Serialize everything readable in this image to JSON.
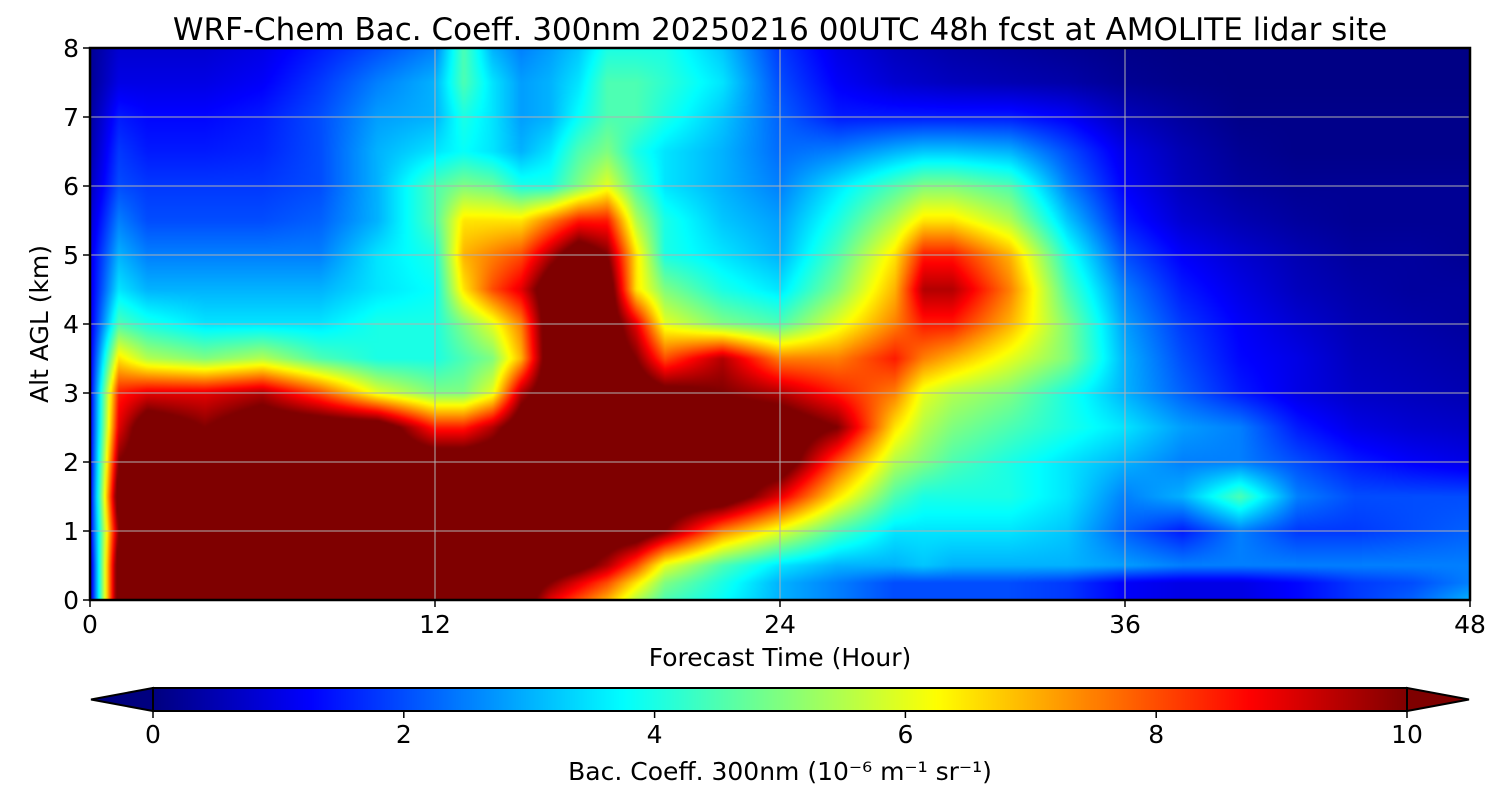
{
  "chart_data": {
    "type": "heatmap",
    "title": "WRF-Chem Bac. Coeff. 300nm  20250216 00UTC 48h fcst at AMOLITE lidar site",
    "xlabel": "Forecast Time (Hour)",
    "ylabel": "Alt AGL (km)",
    "xlim": [
      0,
      48
    ],
    "ylim": [
      0,
      8
    ],
    "xticks": [
      "0",
      "12",
      "24",
      "36",
      "48"
    ],
    "yticks": [
      "0",
      "1",
      "2",
      "3",
      "4",
      "5",
      "6",
      "7",
      "8"
    ],
    "grid": true,
    "colormap": "jet",
    "colorbar": {
      "orientation": "horizontal",
      "label": "Bac. Coeff. 300nm  (10⁻⁶ m⁻¹ sr⁻¹)",
      "range": [
        0,
        10
      ],
      "ticks": [
        "0",
        "2",
        "4",
        "6",
        "8",
        "10"
      ],
      "extend": "both",
      "under_color": "#00007f",
      "over_color": "#7f0000"
    },
    "x": [
      0,
      1,
      2,
      4,
      6,
      8,
      10,
      12,
      13,
      14,
      15,
      16,
      17,
      18,
      19,
      20,
      22,
      24,
      26,
      28,
      29,
      30,
      32,
      34,
      36,
      38,
      40,
      42,
      44,
      46,
      48
    ],
    "y": [
      0,
      0.25,
      0.5,
      1.0,
      1.5,
      2.0,
      2.5,
      3.0,
      3.5,
      4.0,
      4.5,
      5.0,
      5.5,
      6.0,
      6.5,
      7.0,
      7.5,
      8.0
    ],
    "z": [
      [
        0.5,
        11,
        11,
        11,
        11,
        11,
        11,
        11,
        11,
        11,
        11,
        9,
        8,
        7,
        5.5,
        4.5,
        3.8,
        3,
        2.5,
        2,
        2,
        2,
        2,
        1.8,
        1.2,
        1,
        1,
        1.3,
        1.8,
        2.2,
        3
      ],
      [
        0.5,
        11,
        11,
        11,
        11,
        11,
        11,
        11,
        11,
        11,
        11,
        10,
        9,
        8,
        6.5,
        5,
        4,
        3,
        2.5,
        2,
        2,
        2,
        2,
        1.8,
        1.2,
        1,
        1,
        1.3,
        1.8,
        2,
        2.5
      ],
      [
        0.5,
        11,
        11,
        11,
        11,
        11,
        11,
        11,
        11,
        11,
        11,
        11,
        10.5,
        9.5,
        8,
        6,
        4.5,
        3.5,
        3,
        3,
        3.2,
        3,
        3,
        3,
        2.8,
        2.5,
        2.5,
        2.5,
        2.5,
        2.5,
        2.5
      ],
      [
        1,
        10,
        11,
        11,
        11,
        11,
        11,
        11,
        11,
        11,
        11,
        11,
        11,
        11,
        11,
        10,
        7.5,
        6,
        4.5,
        3.5,
        3.5,
        3.5,
        3.5,
        3.2,
        2.2,
        1.5,
        2.5,
        1.8,
        1.8,
        2,
        2.2
      ],
      [
        1,
        11,
        11,
        11,
        11,
        11,
        11,
        11,
        11,
        11,
        11,
        11,
        11,
        11,
        11,
        11,
        11,
        9,
        6.5,
        4.5,
        4,
        4,
        4,
        3.5,
        2.5,
        3,
        4.5,
        2.5,
        2,
        2,
        2
      ],
      [
        1,
        10,
        11,
        11,
        11,
        11,
        11,
        11,
        11,
        11,
        11,
        11,
        11,
        11,
        11,
        11,
        11,
        11,
        8,
        5.5,
        5,
        4.5,
        4,
        3.5,
        3,
        2.5,
        2.5,
        2,
        1.5,
        1.2,
        1
      ],
      [
        1,
        9,
        11,
        10,
        11,
        11,
        11,
        8.5,
        8.5,
        9.5,
        11,
        11,
        11,
        11,
        11,
        11,
        11,
        11,
        10,
        6.5,
        5.5,
        5,
        4.5,
        4,
        3.5,
        2.8,
        2.5,
        1.5,
        1,
        0.8,
        0.7
      ],
      [
        1,
        8.5,
        9,
        9,
        9.5,
        8,
        6,
        5,
        5,
        6,
        9.5,
        11,
        11,
        11,
        11,
        10.5,
        10,
        9.5,
        8.5,
        7.5,
        6,
        5.5,
        5,
        4,
        3,
        2.2,
        1.5,
        1,
        0.7,
        0.6,
        0.5
      ],
      [
        1,
        6.5,
        5.5,
        5,
        5.5,
        4.5,
        4,
        4,
        4.5,
        5,
        7,
        11,
        11,
        11,
        10,
        8,
        9.5,
        7.5,
        7.5,
        8.5,
        7.5,
        7,
        6,
        5,
        3,
        2,
        1.3,
        1,
        0.6,
        0.5,
        0.4
      ],
      [
        1,
        4.5,
        4,
        3.5,
        3.5,
        3.5,
        4,
        4,
        5,
        6,
        7.5,
        11,
        11,
        11,
        9,
        6,
        5,
        4.5,
        6,
        7.5,
        8.5,
        8.5,
        7,
        5,
        2.8,
        1.8,
        1.2,
        0.8,
        0.5,
        0.4,
        0.3
      ],
      [
        1,
        3.5,
        3,
        3,
        3,
        3,
        3.5,
        3.8,
        6.5,
        8,
        9,
        11,
        11,
        11,
        6.5,
        5,
        4,
        3.5,
        5,
        7,
        9.5,
        9.5,
        7.5,
        4.5,
        2.5,
        1.5,
        1,
        0.6,
        0.4,
        0.3,
        0.3
      ],
      [
        1,
        3,
        2.5,
        2.5,
        2.5,
        2.5,
        3.5,
        4,
        7,
        7.5,
        8,
        9.5,
        11,
        10,
        6.5,
        4,
        3.5,
        3,
        4.5,
        6.5,
        8.5,
        8.5,
        7,
        4,
        2,
        1.2,
        0.8,
        0.5,
        0.3,
        0.3,
        0.2
      ],
      [
        0.8,
        2.5,
        2,
        2,
        2,
        2.2,
        3,
        4.5,
        6.5,
        6.5,
        6.5,
        7.5,
        8.5,
        8.5,
        5.5,
        4,
        3.2,
        2.8,
        4,
        5.5,
        6.5,
        6.5,
        5.5,
        3.2,
        1.5,
        0.8,
        0.5,
        0.3,
        0.2,
        0.2,
        0.2
      ],
      [
        0.6,
        2,
        1.8,
        1.8,
        1.8,
        2,
        3,
        4.5,
        5,
        4.8,
        4,
        4,
        5,
        6,
        4.5,
        3.5,
        3,
        2.5,
        3.5,
        4.5,
        5,
        5,
        4.5,
        2.5,
        1.2,
        0.6,
        0.3,
        0.2,
        0.2,
        0.2,
        0.2
      ],
      [
        0.4,
        1.8,
        1.5,
        1.5,
        1.6,
        2,
        3,
        3.5,
        3.8,
        3.5,
        3,
        3.5,
        4.5,
        5,
        4,
        3.5,
        3,
        2.3,
        2.5,
        3,
        3.2,
        3.2,
        3,
        2,
        1,
        0.5,
        0.2,
        0.1,
        0.1,
        0.1,
        0.1
      ],
      [
        0.3,
        1.5,
        1.3,
        1.3,
        1.5,
        2,
        2.8,
        3,
        4,
        3.5,
        2.8,
        3,
        3.8,
        4.5,
        4.5,
        4,
        3.2,
        2.2,
        1.5,
        1.5,
        1.5,
        1.5,
        1.5,
        1.2,
        0.6,
        0.3,
        0.1,
        0.1,
        0.1,
        0.1,
        0.1
      ],
      [
        0.2,
        1,
        1,
        1,
        1.2,
        1.8,
        2.5,
        3,
        4.5,
        3.5,
        2.8,
        3,
        3.5,
        4.5,
        4.5,
        4.2,
        3.5,
        2,
        1.2,
        0.8,
        0.7,
        0.6,
        0.5,
        0.4,
        0.2,
        0.1,
        0.05,
        0.05,
        0.05,
        0.05,
        0.05
      ],
      [
        0.2,
        0.8,
        0.8,
        0.8,
        1,
        1.5,
        2,
        2.5,
        4.5,
        3,
        2.5,
        2.8,
        3.2,
        4,
        4,
        4,
        3.2,
        1.8,
        1,
        0.6,
        0.5,
        0.4,
        0.3,
        0.2,
        0.1,
        0.05,
        0.05,
        0.05,
        0.05,
        0.05,
        0.05
      ]
    ]
  }
}
